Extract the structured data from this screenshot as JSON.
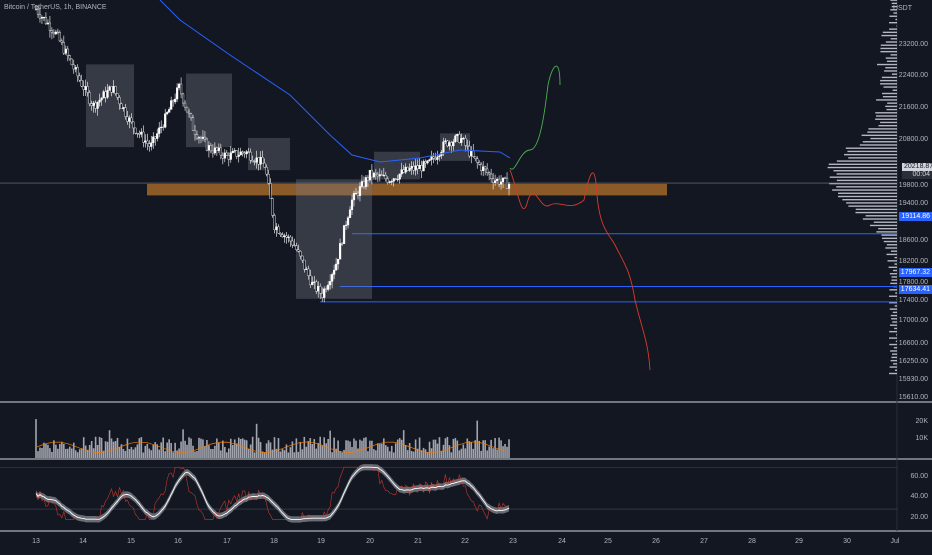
{
  "header": {
    "symbol": "Bitcoin / TetherUS, 1h, BINANCE"
  },
  "price_axis": {
    "unit": "USDT",
    "ticks": [
      "23200.00",
      "22400.00",
      "21600.00",
      "20800.00",
      "19800.00",
      "19400.00",
      "18600.00",
      "18200.00",
      "17800.00",
      "17400.00",
      "17000.00",
      "16600.00",
      "16250.00",
      "15930.00",
      "15610.00"
    ],
    "current_price": "20218.87",
    "current_time": "00:04",
    "levels": [
      "19114.86",
      "17967.32",
      "17634.41"
    ]
  },
  "volume_axis": {
    "ticks": [
      "20K",
      "10K"
    ]
  },
  "rsi_axis": {
    "ticks": [
      "60.00",
      "40.00",
      "20.00"
    ]
  },
  "time_axis": {
    "ticks": [
      "13",
      "14",
      "15",
      "16",
      "17",
      "18",
      "19",
      "20",
      "21",
      "22",
      "23",
      "24",
      "25",
      "26",
      "27",
      "28",
      "29",
      "30",
      "Jul"
    ]
  },
  "colors": {
    "background": "#131722",
    "candle": "#ffffff",
    "support_zone": "#a0662a",
    "level_line": "#2962ff",
    "projection_up": "#4caf50",
    "projection_down": "#d83a2b",
    "ma_slow": "#2962ff"
  },
  "chart_data": {
    "type": "candlestick",
    "x_unit": "day of month (Jun)",
    "price_close": [
      {
        "x": 13.0,
        "y": 24000
      },
      {
        "x": 13.4,
        "y": 23500
      },
      {
        "x": 13.8,
        "y": 22700
      },
      {
        "x": 14.2,
        "y": 21900
      },
      {
        "x": 14.6,
        "y": 22300
      },
      {
        "x": 15.0,
        "y": 21500
      },
      {
        "x": 15.4,
        "y": 21000
      },
      {
        "x": 15.7,
        "y": 21600
      },
      {
        "x": 16.0,
        "y": 22300
      },
      {
        "x": 16.3,
        "y": 21400
      },
      {
        "x": 16.6,
        "y": 21000
      },
      {
        "x": 17.0,
        "y": 20800
      },
      {
        "x": 17.4,
        "y": 20900
      },
      {
        "x": 17.8,
        "y": 20600
      },
      {
        "x": 18.0,
        "y": 19300
      },
      {
        "x": 18.4,
        "y": 18900
      },
      {
        "x": 18.8,
        "y": 18000
      },
      {
        "x": 19.0,
        "y": 17800
      },
      {
        "x": 19.3,
        "y": 18500
      },
      {
        "x": 19.6,
        "y": 19800
      },
      {
        "x": 20.0,
        "y": 20400
      },
      {
        "x": 20.4,
        "y": 20300
      },
      {
        "x": 20.8,
        "y": 20500
      },
      {
        "x": 21.2,
        "y": 20600
      },
      {
        "x": 21.6,
        "y": 21100
      },
      {
        "x": 21.9,
        "y": 21200
      },
      {
        "x": 22.2,
        "y": 20700
      },
      {
        "x": 22.6,
        "y": 20300
      },
      {
        "x": 22.9,
        "y": 20200
      }
    ],
    "support_zone": [
      19950,
      20200
    ],
    "horizontal_levels": [
      19114.86,
      17967.32,
      17634.41
    ],
    "volume_max": 28000,
    "rsi_range": [
      10,
      75
    ]
  }
}
